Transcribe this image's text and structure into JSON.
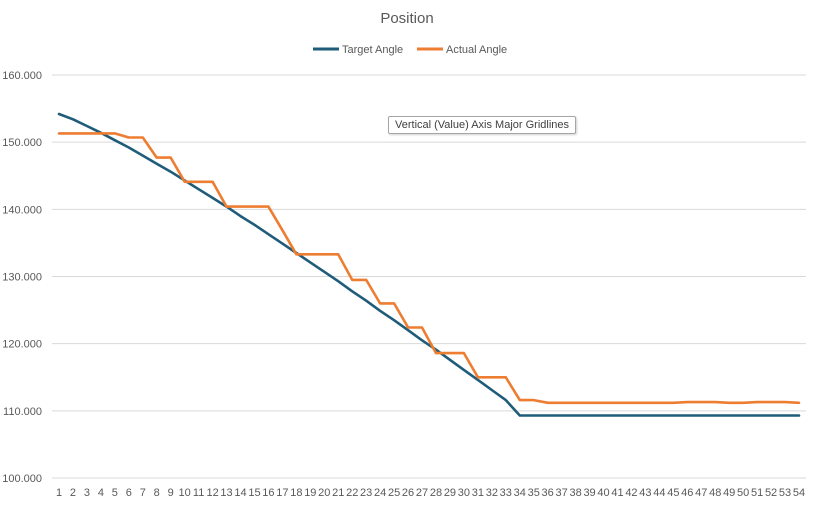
{
  "chart_data": {
    "type": "line",
    "title": "Position",
    "xlabel": "",
    "ylabel": "",
    "x": [
      1,
      2,
      3,
      4,
      5,
      6,
      7,
      8,
      9,
      10,
      11,
      12,
      13,
      14,
      15,
      16,
      17,
      18,
      19,
      20,
      21,
      22,
      23,
      24,
      25,
      26,
      27,
      28,
      29,
      30,
      31,
      32,
      33,
      34,
      35,
      36,
      37,
      38,
      39,
      40,
      41,
      42,
      43,
      44,
      45,
      46,
      47,
      48,
      49,
      50,
      51,
      52,
      53,
      54
    ],
    "ylim": [
      100,
      160
    ],
    "y_ticks": [
      "100.000",
      "110.000",
      "120.000",
      "130.000",
      "140.000",
      "150.000",
      "160.000"
    ],
    "y_tick_values": [
      100,
      110,
      120,
      130,
      140,
      150,
      160
    ],
    "grid": "horizontal",
    "legend_position": "top",
    "series": [
      {
        "name": "Target Angle",
        "color": "#1f5c7a",
        "values": [
          154.2,
          153.4,
          152.4,
          151.4,
          150.3,
          149.2,
          148.0,
          146.8,
          145.6,
          144.3,
          143.0,
          141.7,
          140.4,
          139.0,
          137.7,
          136.3,
          134.9,
          133.5,
          132.1,
          130.7,
          129.3,
          127.8,
          126.4,
          124.9,
          123.5,
          122.0,
          120.5,
          119.1,
          117.6,
          116.1,
          114.6,
          113.1,
          111.6,
          109.3,
          109.3,
          109.3,
          109.3,
          109.3,
          109.3,
          109.3,
          109.3,
          109.3,
          109.3,
          109.3,
          109.3,
          109.3,
          109.3,
          109.3,
          109.3,
          109.3,
          109.3,
          109.3,
          109.3,
          109.3
        ]
      },
      {
        "name": "Actual Angle",
        "color": "#ed7d31",
        "values": [
          151.3,
          151.3,
          151.3,
          151.3,
          151.3,
          150.7,
          150.7,
          147.7,
          147.7,
          144.1,
          144.1,
          144.1,
          140.4,
          140.4,
          140.4,
          140.4,
          136.9,
          133.3,
          133.3,
          133.3,
          133.3,
          129.5,
          129.5,
          126.0,
          126.0,
          122.4,
          122.4,
          118.6,
          118.6,
          118.6,
          115.0,
          115.0,
          115.0,
          111.6,
          111.6,
          111.2,
          111.2,
          111.2,
          111.2,
          111.2,
          111.2,
          111.2,
          111.2,
          111.2,
          111.2,
          111.3,
          111.3,
          111.3,
          111.2,
          111.2,
          111.3,
          111.3,
          111.3,
          111.2
        ]
      }
    ]
  },
  "tooltip": {
    "text": "Vertical (Value) Axis Major Gridlines"
  }
}
